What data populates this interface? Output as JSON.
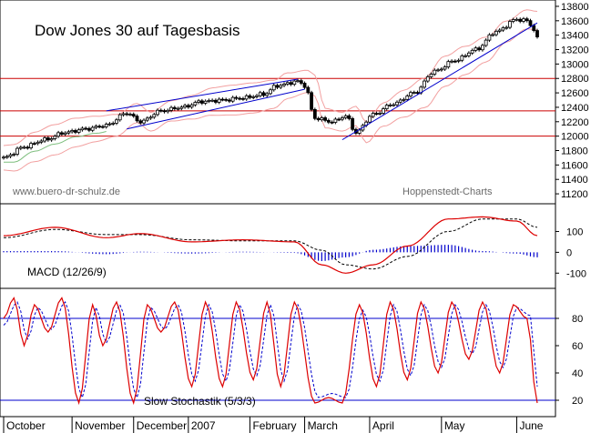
{
  "chart_data": [
    {
      "type": "candlestick",
      "title": "Dow Jones 30 auf Tagesbasis",
      "watermark_left": "www.buero-dr-schulz.de",
      "watermark_right": "Hoppenstedt-Charts",
      "ylim": [
        11100,
        13850
      ],
      "y_ticks": [
        11200,
        11400,
        11600,
        11800,
        12000,
        12200,
        12400,
        12600,
        12800,
        13000,
        13200,
        13400,
        13600,
        13800
      ],
      "horizontal_lines": [
        12000,
        12350,
        12800
      ],
      "months": [
        "October",
        "November",
        "December",
        "2007",
        "February",
        "March",
        "April",
        "May",
        "June"
      ],
      "price_anchors": [
        {
          "d": 0,
          "v": 11700
        },
        {
          "d": 6,
          "v": 11850
        },
        {
          "d": 12,
          "v": 11950
        },
        {
          "d": 18,
          "v": 12050
        },
        {
          "d": 24,
          "v": 12100
        },
        {
          "d": 30,
          "v": 12150
        },
        {
          "d": 36,
          "v": 12320
        },
        {
          "d": 40,
          "v": 12200
        },
        {
          "d": 46,
          "v": 12350
        },
        {
          "d": 52,
          "v": 12400
        },
        {
          "d": 58,
          "v": 12480
        },
        {
          "d": 64,
          "v": 12500
        },
        {
          "d": 70,
          "v": 12530
        },
        {
          "d": 76,
          "v": 12580
        },
        {
          "d": 80,
          "v": 12700
        },
        {
          "d": 86,
          "v": 12760
        },
        {
          "d": 88,
          "v": 12700
        },
        {
          "d": 91,
          "v": 12250
        },
        {
          "d": 96,
          "v": 12200
        },
        {
          "d": 100,
          "v": 12280
        },
        {
          "d": 103,
          "v": 12050
        },
        {
          "d": 108,
          "v": 12300
        },
        {
          "d": 114,
          "v": 12450
        },
        {
          "d": 120,
          "v": 12600
        },
        {
          "d": 126,
          "v": 12900
        },
        {
          "d": 132,
          "v": 13050
        },
        {
          "d": 138,
          "v": 13200
        },
        {
          "d": 144,
          "v": 13450
        },
        {
          "d": 150,
          "v": 13620
        },
        {
          "d": 153,
          "v": 13600
        },
        {
          "d": 155,
          "v": 13480
        },
        {
          "d": 156,
          "v": 13350
        }
      ],
      "trend_lines": [
        {
          "from": {
            "d": 30,
            "v": 12350
          },
          "to": {
            "d": 86,
            "v": 12790
          }
        },
        {
          "from": {
            "d": 36,
            "v": 12100
          },
          "to": {
            "d": 88,
            "v": 12650
          }
        },
        {
          "from": {
            "d": 99,
            "v": 11950
          },
          "to": {
            "d": 156,
            "v": 13570
          }
        }
      ]
    },
    {
      "type": "line",
      "label": "MACD (12/26/9)",
      "ylim": [
        -160,
        220
      ],
      "y_ticks": [
        100,
        0,
        -100
      ],
      "macd_anchors": [
        {
          "d": 0,
          "v": 80
        },
        {
          "d": 15,
          "v": 120
        },
        {
          "d": 30,
          "v": 70
        },
        {
          "d": 40,
          "v": 90
        },
        {
          "d": 55,
          "v": 50
        },
        {
          "d": 70,
          "v": 60
        },
        {
          "d": 85,
          "v": 50
        },
        {
          "d": 93,
          "v": -60
        },
        {
          "d": 100,
          "v": -100
        },
        {
          "d": 108,
          "v": -60
        },
        {
          "d": 118,
          "v": 30
        },
        {
          "d": 130,
          "v": 160
        },
        {
          "d": 140,
          "v": 170
        },
        {
          "d": 150,
          "v": 150
        },
        {
          "d": 156,
          "v": 80
        }
      ],
      "signal_anchors": [
        {
          "d": 0,
          "v": 70
        },
        {
          "d": 15,
          "v": 110
        },
        {
          "d": 30,
          "v": 85
        },
        {
          "d": 40,
          "v": 85
        },
        {
          "d": 55,
          "v": 60
        },
        {
          "d": 70,
          "v": 55
        },
        {
          "d": 85,
          "v": 55
        },
        {
          "d": 93,
          "v": 10
        },
        {
          "d": 100,
          "v": -60
        },
        {
          "d": 108,
          "v": -80
        },
        {
          "d": 118,
          "v": -20
        },
        {
          "d": 130,
          "v": 100
        },
        {
          "d": 140,
          "v": 160
        },
        {
          "d": 150,
          "v": 160
        },
        {
          "d": 156,
          "v": 120
        }
      ]
    },
    {
      "type": "line",
      "label": "Slow Stochastik (5/3/3)",
      "ylim": [
        10,
        100
      ],
      "y_ticks": [
        80,
        60,
        40,
        20
      ],
      "horizontal_lines": [
        80,
        20
      ],
      "k_anchors": [
        {
          "d": 0,
          "v": 80
        },
        {
          "d": 3,
          "v": 95
        },
        {
          "d": 6,
          "v": 60
        },
        {
          "d": 9,
          "v": 90
        },
        {
          "d": 13,
          "v": 70
        },
        {
          "d": 17,
          "v": 95
        },
        {
          "d": 22,
          "v": 18
        },
        {
          "d": 26,
          "v": 90
        },
        {
          "d": 29,
          "v": 60
        },
        {
          "d": 33,
          "v": 92
        },
        {
          "d": 38,
          "v": 18
        },
        {
          "d": 42,
          "v": 90
        },
        {
          "d": 46,
          "v": 70
        },
        {
          "d": 50,
          "v": 92
        },
        {
          "d": 55,
          "v": 30
        },
        {
          "d": 59,
          "v": 92
        },
        {
          "d": 64,
          "v": 30
        },
        {
          "d": 68,
          "v": 92
        },
        {
          "d": 73,
          "v": 35
        },
        {
          "d": 77,
          "v": 92
        },
        {
          "d": 81,
          "v": 30
        },
        {
          "d": 85,
          "v": 92
        },
        {
          "d": 91,
          "v": 18
        },
        {
          "d": 95,
          "v": 22
        },
        {
          "d": 99,
          "v": 18
        },
        {
          "d": 104,
          "v": 90
        },
        {
          "d": 109,
          "v": 30
        },
        {
          "d": 113,
          "v": 92
        },
        {
          "d": 118,
          "v": 35
        },
        {
          "d": 122,
          "v": 92
        },
        {
          "d": 127,
          "v": 40
        },
        {
          "d": 131,
          "v": 92
        },
        {
          "d": 136,
          "v": 50
        },
        {
          "d": 140,
          "v": 92
        },
        {
          "d": 145,
          "v": 40
        },
        {
          "d": 149,
          "v": 90
        },
        {
          "d": 153,
          "v": 80
        },
        {
          "d": 156,
          "v": 18
        }
      ],
      "d_anchors": [
        {
          "d": 0,
          "v": 75
        },
        {
          "d": 4,
          "v": 92
        },
        {
          "d": 7,
          "v": 65
        },
        {
          "d": 10,
          "v": 88
        },
        {
          "d": 14,
          "v": 72
        },
        {
          "d": 18,
          "v": 92
        },
        {
          "d": 23,
          "v": 22
        },
        {
          "d": 27,
          "v": 88
        },
        {
          "d": 30,
          "v": 62
        },
        {
          "d": 34,
          "v": 90
        },
        {
          "d": 39,
          "v": 22
        },
        {
          "d": 43,
          "v": 88
        },
        {
          "d": 47,
          "v": 72
        },
        {
          "d": 51,
          "v": 90
        },
        {
          "d": 56,
          "v": 34
        },
        {
          "d": 60,
          "v": 90
        },
        {
          "d": 65,
          "v": 34
        },
        {
          "d": 69,
          "v": 90
        },
        {
          "d": 74,
          "v": 38
        },
        {
          "d": 78,
          "v": 90
        },
        {
          "d": 82,
          "v": 34
        },
        {
          "d": 86,
          "v": 90
        },
        {
          "d": 92,
          "v": 22
        },
        {
          "d": 96,
          "v": 25
        },
        {
          "d": 100,
          "v": 22
        },
        {
          "d": 105,
          "v": 86
        },
        {
          "d": 110,
          "v": 34
        },
        {
          "d": 114,
          "v": 90
        },
        {
          "d": 119,
          "v": 38
        },
        {
          "d": 123,
          "v": 90
        },
        {
          "d": 128,
          "v": 44
        },
        {
          "d": 132,
          "v": 90
        },
        {
          "d": 137,
          "v": 54
        },
        {
          "d": 141,
          "v": 90
        },
        {
          "d": 146,
          "v": 44
        },
        {
          "d": 150,
          "v": 88
        },
        {
          "d": 154,
          "v": 82
        },
        {
          "d": 156,
          "v": 30
        }
      ]
    }
  ],
  "colors": {
    "candle": "#000000",
    "bollinger": "#f2a0a0",
    "support": "#cc0000",
    "trend": "#0000cc",
    "macd": "#dd0000",
    "signal": "#000000",
    "histogram": "#0000cc",
    "stoch_k": "#dd0000",
    "stoch_d": "#0000cc",
    "stoch_lines": "#0000cc",
    "ma_green": "#7fbf7f"
  }
}
